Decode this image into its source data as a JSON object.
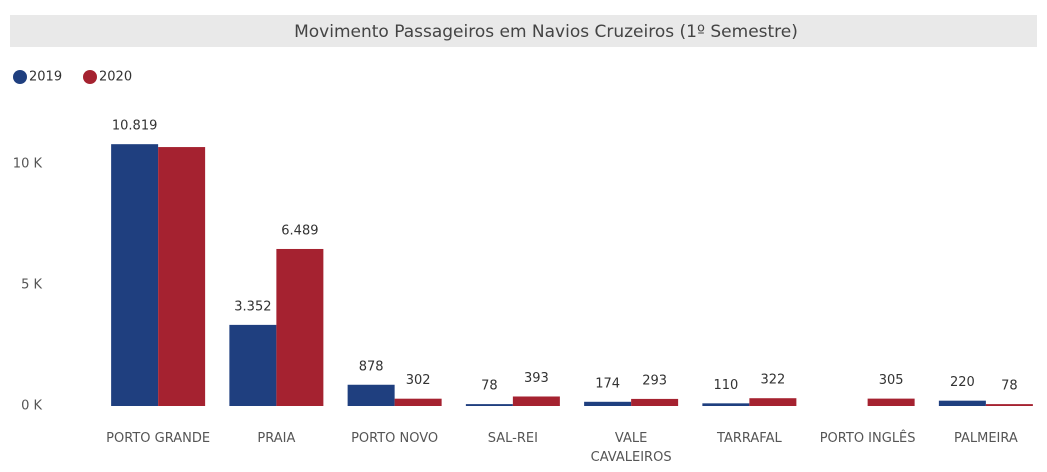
{
  "chart_data": {
    "type": "bar",
    "title": "Movimento Passageiros em Navios Cruzeiros (1º Semestre)",
    "categories": [
      "PORTO GRANDE",
      "PRAIA",
      "PORTO NOVO",
      "SAL-REI",
      "VALE CAVALEIROS",
      "TARRAFAL",
      "PORTO INGLÊS",
      "PALMEIRA"
    ],
    "series": [
      {
        "name": "2019",
        "color": "#1f3f7f",
        "values": [
          10819,
          3352,
          878,
          78,
          174,
          110,
          null,
          220
        ],
        "value_labels": [
          "10.819",
          "3.352",
          "878",
          "78",
          "174",
          "110",
          null,
          "220"
        ]
      },
      {
        "name": "2020",
        "color": "#a52230",
        "values": [
          10700,
          6489,
          302,
          393,
          293,
          322,
          305,
          78
        ],
        "value_labels": [
          null,
          "6.489",
          "302",
          "393",
          "293",
          "322",
          "305",
          "78"
        ]
      }
    ],
    "ylim": [
      0,
      12000
    ],
    "yticks": [
      {
        "value": 0,
        "label": "0 K"
      },
      {
        "value": 5000,
        "label": "5 K"
      },
      {
        "value": 10000,
        "label": "10 K"
      }
    ],
    "legend": "top-left"
  }
}
